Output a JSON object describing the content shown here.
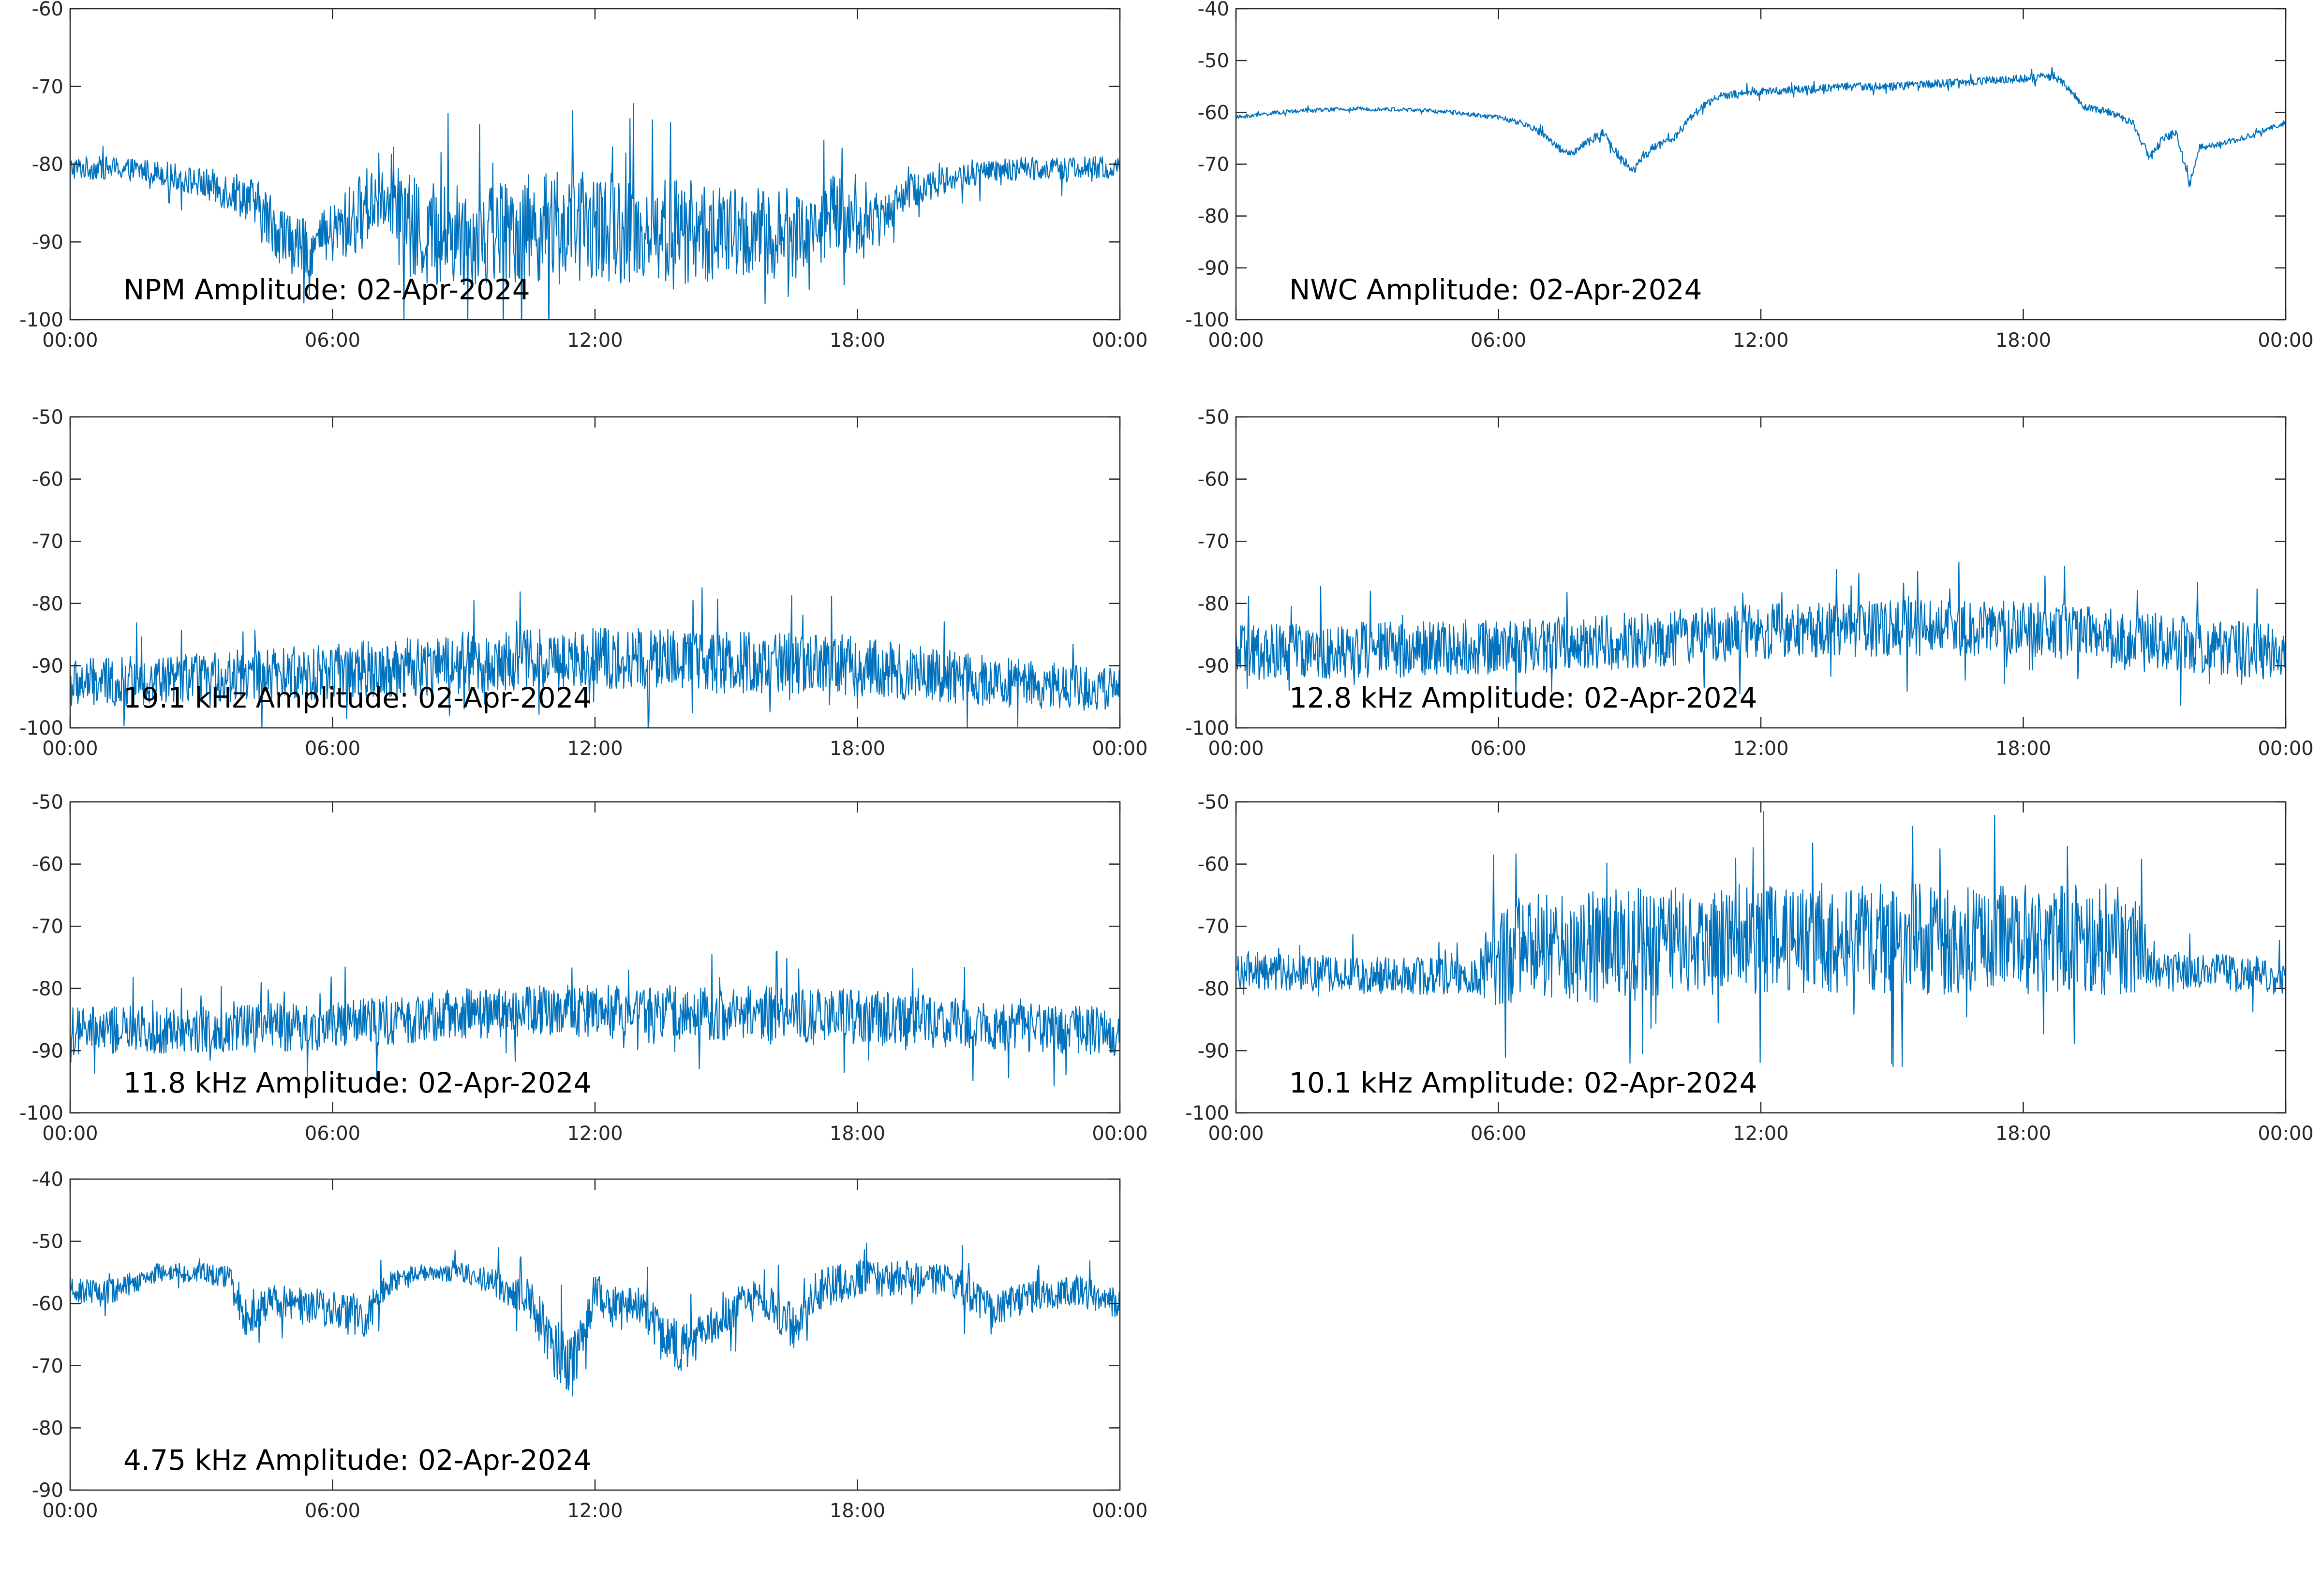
{
  "chart_data": [
    {
      "type": "line",
      "annotation": "NPM Amplitude: 02-Apr-2024",
      "x_ticks": [
        "00:00",
        "06:00",
        "12:00",
        "18:00",
        "00:00"
      ],
      "y_ticks": [
        "-60",
        "-70",
        "-80",
        "-90",
        "-100"
      ],
      "ylim": [
        -100,
        -60
      ],
      "xlim_hours": [
        0,
        24
      ],
      "grid": false,
      "color": "#0072BD",
      "series": [
        {
          "x": [
            0,
            1,
            2,
            3,
            4,
            4.5,
            5,
            5.5,
            6,
            6.5,
            7,
            7.3,
            7.6,
            8,
            9,
            10,
            11,
            12,
            13,
            14,
            15,
            16,
            16.5,
            17,
            17.5,
            18,
            18.5,
            19,
            20,
            21,
            22,
            23,
            24
          ],
          "y": [
            -80.5,
            -80.5,
            -81,
            -82.5,
            -84,
            -87,
            -90,
            -91,
            -89,
            -87,
            -84,
            -83,
            -88,
            -89,
            -89,
            -88.5,
            -88,
            -88,
            -88.5,
            -88.5,
            -89,
            -89,
            -89,
            -88.5,
            -86,
            -88,
            -87,
            -84,
            -82,
            -81,
            -80.5,
            -80.5,
            -80.5
          ],
          "spread": [
            1.5,
            1.5,
            1.5,
            2,
            3,
            4,
            4,
            3.5,
            4,
            5,
            5,
            5,
            7,
            7,
            7,
            7,
            7,
            7,
            7,
            7,
            6,
            6,
            6,
            5,
            5,
            4,
            3.5,
            2.5,
            1.8,
            1.5,
            1.5,
            1.5,
            1.5
          ]
        }
      ]
    },
    {
      "type": "line",
      "annotation": "NWC Amplitude: 02-Apr-2024",
      "x_ticks": [
        "00:00",
        "06:00",
        "12:00",
        "18:00",
        "00:00"
      ],
      "y_ticks": [
        "-40",
        "-50",
        "-60",
        "-70",
        "-80",
        "-90",
        "-100"
      ],
      "ylim": [
        -100,
        -40
      ],
      "xlim_hours": [
        0,
        24
      ],
      "grid": false,
      "color": "#0072BD",
      "series": [
        {
          "x": [
            0,
            1,
            2,
            3,
            4,
            5,
            6,
            6.5,
            7,
            7.4,
            7.7,
            8,
            8.4,
            8.8,
            9.1,
            9.5,
            10,
            10.5,
            11,
            12,
            13,
            14,
            15,
            16,
            17,
            18,
            18.7,
            19,
            19.4,
            20,
            20.5,
            20.9,
            21.2,
            21.5,
            21.8,
            22,
            22.5,
            23,
            24
          ],
          "y": [
            -61,
            -60,
            -59.5,
            -59.3,
            -59.5,
            -60,
            -61,
            -62,
            -64,
            -67,
            -68,
            -66,
            -64,
            -69,
            -71,
            -67,
            -65,
            -60,
            -57,
            -56,
            -55.5,
            -55,
            -55,
            -54.5,
            -54,
            -53.5,
            -53,
            -55,
            -59,
            -60,
            -62,
            -69,
            -65,
            -64,
            -74,
            -67,
            -66,
            -65,
            -62
          ],
          "spread": [
            0.4,
            0.4,
            0.4,
            0.4,
            0.4,
            0.4,
            0.5,
            0.6,
            0.7,
            0.8,
            0.8,
            0.8,
            0.8,
            0.9,
            0.9,
            0.8,
            0.8,
            0.8,
            0.8,
            0.8,
            0.8,
            0.8,
            0.8,
            0.8,
            0.8,
            0.8,
            0.8,
            0.8,
            0.7,
            0.7,
            0.7,
            0.9,
            0.8,
            0.8,
            0.9,
            0.8,
            0.6,
            0.5,
            0.5
          ]
        }
      ]
    },
    {
      "type": "line",
      "annotation": "19.1 kHz Amplitude: 02-Apr-2024",
      "x_ticks": [
        "00:00",
        "06:00",
        "12:00",
        "18:00",
        "00:00"
      ],
      "y_ticks": [
        "-50",
        "-60",
        "-70",
        "-80",
        "-90",
        "-100"
      ],
      "ylim": [
        -100,
        -50
      ],
      "xlim_hours": [
        0,
        24
      ],
      "grid": false,
      "color": "#0072BD",
      "series": [
        {
          "x": [
            0,
            3,
            6,
            9,
            12,
            15,
            18,
            21,
            24
          ],
          "y": [
            -93,
            -92,
            -91,
            -89.5,
            -88.5,
            -89.5,
            -90,
            -92.5,
            -94
          ],
          "spread": [
            4,
            4,
            4.5,
            5,
            5,
            5,
            5,
            4,
            3.5
          ]
        }
      ]
    },
    {
      "type": "line",
      "annotation": "12.8 kHz Amplitude: 02-Apr-2024",
      "x_ticks": [
        "00:00",
        "06:00",
        "12:00",
        "18:00",
        "00:00"
      ],
      "y_ticks": [
        "-50",
        "-60",
        "-70",
        "-80",
        "-90",
        "-100"
      ],
      "ylim": [
        -100,
        -50
      ],
      "xlim_hours": [
        0,
        24
      ],
      "grid": false,
      "color": "#0072BD",
      "series": [
        {
          "x": [
            0,
            3,
            6,
            9,
            12,
            15,
            18,
            21,
            24
          ],
          "y": [
            -88,
            -87.5,
            -87,
            -86,
            -84.5,
            -84,
            -84,
            -86,
            -88
          ],
          "spread": [
            4.5,
            4.5,
            4.5,
            4.5,
            4.5,
            4.5,
            4.5,
            4.5,
            4.5
          ]
        }
      ]
    },
    {
      "type": "line",
      "annotation": "11.8 kHz Amplitude: 02-Apr-2024",
      "x_ticks": [
        "00:00",
        "06:00",
        "12:00",
        "18:00",
        "00:00"
      ],
      "y_ticks": [
        "-50",
        "-60",
        "-70",
        "-80",
        "-90",
        "-100"
      ],
      "ylim": [
        -100,
        -50
      ],
      "xlim_hours": [
        0,
        24
      ],
      "grid": false,
      "color": "#0072BD",
      "series": [
        {
          "x": [
            0,
            3,
            6,
            9,
            12,
            15,
            18,
            21,
            24
          ],
          "y": [
            -87,
            -86.5,
            -86,
            -84,
            -83.5,
            -84,
            -84.5,
            -86,
            -87
          ],
          "spread": [
            4,
            4,
            4,
            4,
            4.5,
            4.5,
            4.5,
            4,
            4
          ]
        }
      ]
    },
    {
      "type": "line",
      "annotation": "10.1 kHz Amplitude: 02-Apr-2024",
      "x_ticks": [
        "00:00",
        "06:00",
        "12:00",
        "18:00",
        "00:00"
      ],
      "y_ticks": [
        "-50",
        "-60",
        "-70",
        "-80",
        "-90",
        "-100"
      ],
      "ylim": [
        -100,
        -50
      ],
      "xlim_hours": [
        0,
        24
      ],
      "grid": false,
      "color": "#0072BD",
      "series": [
        {
          "x": [
            0,
            3,
            5.5,
            6,
            9,
            12,
            15,
            18,
            20.5,
            21,
            24
          ],
          "y": [
            -77,
            -78,
            -78,
            -74,
            -73,
            -72,
            -72,
            -72,
            -72,
            -77,
            -78
          ],
          "spread": [
            3,
            3,
            3,
            9,
            9,
            9,
            9,
            9,
            9,
            3,
            3
          ]
        }
      ]
    },
    {
      "type": "line",
      "annotation": "4.75 kHz Amplitude: 02-Apr-2024",
      "x_ticks": [
        "00:00",
        "06:00",
        "12:00",
        "18:00",
        "00:00"
      ],
      "y_ticks": [
        "-40",
        "-50",
        "-60",
        "-70",
        "-80",
        "-90"
      ],
      "ylim": [
        -90,
        -40
      ],
      "xlim_hours": [
        0,
        24
      ],
      "grid": false,
      "color": "#0072BD",
      "series": [
        {
          "x": [
            0,
            1,
            2,
            3,
            3.7,
            4,
            4.5,
            5,
            6,
            6.8,
            7.3,
            8,
            9,
            9.8,
            10.5,
            11,
            11.5,
            12,
            12.5,
            13,
            13.5,
            14,
            15,
            15.5,
            16,
            16.5,
            17,
            18,
            19,
            20,
            20.5,
            21,
            22,
            23,
            24
          ],
          "y": [
            -58,
            -58,
            -55,
            -55,
            -56,
            -62,
            -60,
            -60,
            -61,
            -62,
            -57,
            -55,
            -55,
            -57,
            -59,
            -67,
            -70,
            -58,
            -61,
            -60,
            -65,
            -67,
            -62,
            -59,
            -60,
            -64,
            -58,
            -56,
            -56,
            -56,
            -58,
            -61,
            -59,
            -58,
            -60
          ],
          "spread": [
            2,
            2,
            1.5,
            1.5,
            2,
            4,
            3,
            3,
            3,
            3.5,
            2,
            1.5,
            1.5,
            2.5,
            3,
            5,
            5,
            3,
            3.5,
            3,
            4,
            4,
            3,
            3,
            3,
            4,
            3.5,
            3,
            3,
            2.5,
            3,
            3,
            2.5,
            2.5,
            2.5
          ]
        }
      ]
    }
  ]
}
